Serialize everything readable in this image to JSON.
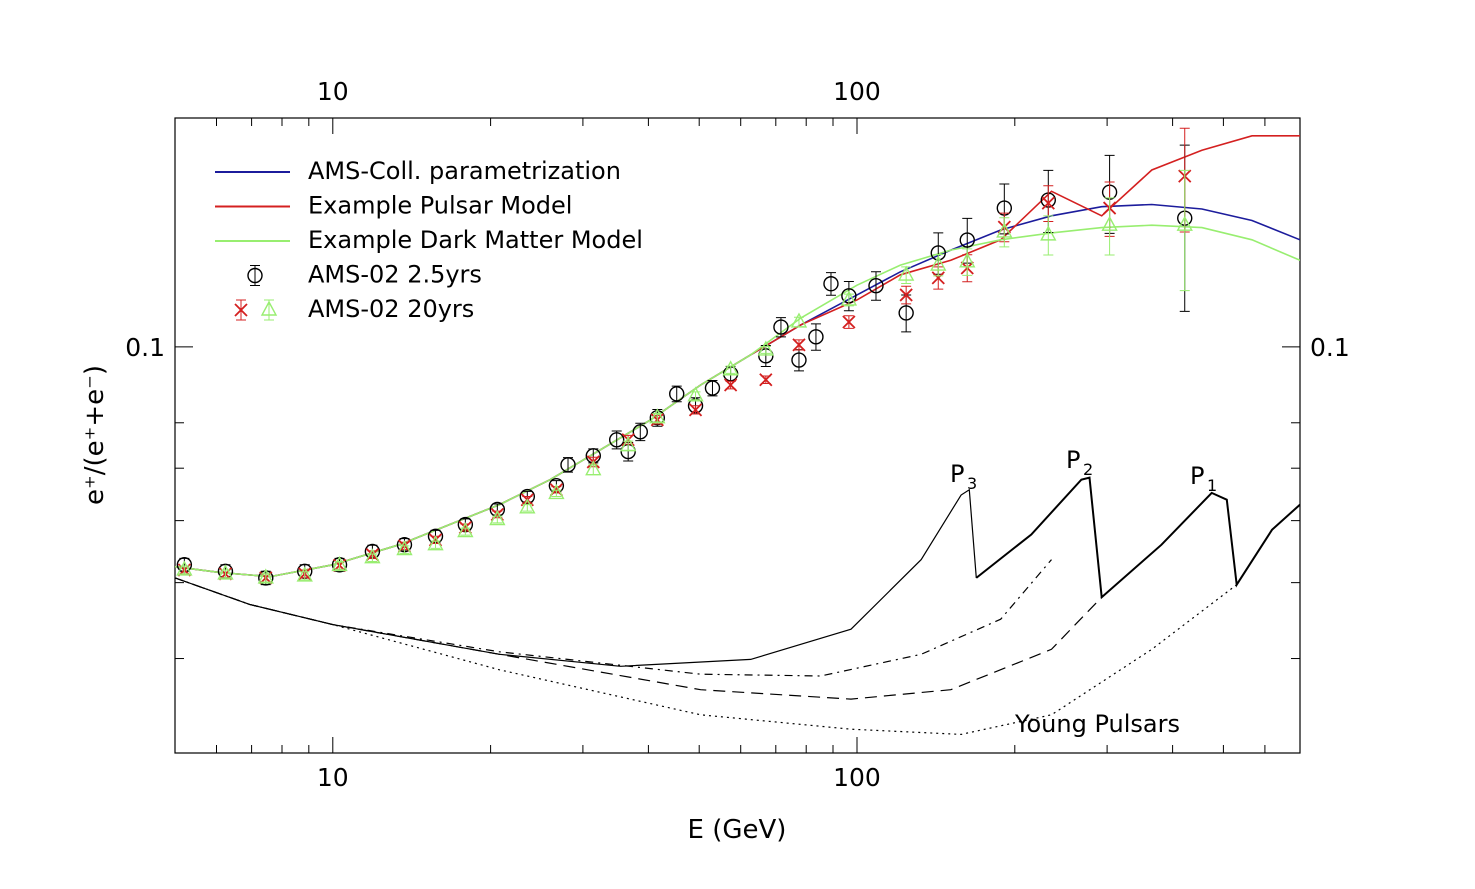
{
  "chart_data": {
    "type": "line",
    "xlabel": "E (GeV)",
    "ylabel": "e⁺/(e⁺+e⁻)",
    "xlog": true,
    "ylog": true,
    "xlim": [
      5,
      700
    ],
    "ylim": [
      0.0303,
      0.196
    ],
    "xticks": [
      10,
      100
    ],
    "xminor": [
      6,
      7,
      8,
      9,
      20,
      30,
      40,
      50,
      60,
      70,
      80,
      90,
      200,
      300,
      400,
      500,
      600
    ],
    "yticks": [
      0.1
    ],
    "yminor": [
      0.04,
      0.05,
      0.06,
      0.07,
      0.08
    ],
    "legend": "upper left",
    "series": [
      {
        "name": "AMS-Coll. parametrization",
        "kind": "line",
        "color": "#1c1c9c",
        "x": [
          5,
          6.1,
          7.6,
          10,
          13.4,
          16.7,
          20.8,
          26,
          32.4,
          40.4,
          50.3,
          62.7,
          78.2,
          100,
          121,
          151,
          188,
          235,
          293,
          365,
          455,
          567,
          700
        ],
        "values": [
          0.0524,
          0.0515,
          0.0509,
          0.0527,
          0.0559,
          0.0593,
          0.0629,
          0.0677,
          0.0739,
          0.0807,
          0.0894,
          0.0977,
          0.1067,
          0.1165,
          0.1247,
          0.1329,
          0.141,
          0.147,
          0.151,
          0.152,
          0.15,
          0.145,
          0.137
        ]
      },
      {
        "name": "Example Pulsar Model",
        "kind": "line",
        "color": "#d42020",
        "x": [
          5,
          6.1,
          7.6,
          10,
          13.4,
          16.7,
          20.8,
          26,
          32.4,
          40.4,
          50.3,
          62.7,
          78.2,
          100,
          121,
          151,
          188,
          235,
          293,
          365,
          455,
          567,
          700
        ],
        "values": [
          0.0524,
          0.0515,
          0.0509,
          0.0527,
          0.0559,
          0.0593,
          0.0629,
          0.0677,
          0.0739,
          0.0807,
          0.0894,
          0.0977,
          0.1067,
          0.1148,
          0.1236,
          0.129,
          0.137,
          0.158,
          0.147,
          0.1682,
          0.1783,
          0.186,
          0.186
        ]
      },
      {
        "name": "Example Dark Matter Model",
        "kind": "line",
        "color": "#98ee70",
        "x": [
          5,
          6.1,
          7.6,
          10,
          13.4,
          16.7,
          20.8,
          26,
          32.4,
          40.4,
          50.3,
          62.7,
          78.2,
          100,
          121,
          151,
          188,
          235,
          293,
          365,
          455,
          567,
          700
        ],
        "values": [
          0.0524,
          0.0515,
          0.0509,
          0.0527,
          0.0559,
          0.0593,
          0.0629,
          0.0677,
          0.0739,
          0.0807,
          0.0894,
          0.0977,
          0.1089,
          0.1199,
          0.1272,
          0.1329,
          0.137,
          0.1398,
          0.142,
          0.143,
          0.142,
          0.137,
          0.129
        ]
      },
      {
        "name": "AMS-02 2.5yrs",
        "kind": "points",
        "markers": [
          {
            "symbol": "circle",
            "color": "#000000",
            "x": [
              5.21,
              6.24,
              7.45,
              8.84,
              10.3,
              11.9,
              13.7,
              15.7,
              17.9,
              20.6,
              23.5,
              26.7,
              28.1,
              31.4,
              34.8,
              36.6,
              38.6,
              41.6,
              45.3,
              49.2,
              53.0,
              57.4,
              67.0,
              71.6,
              77.5,
              83.5,
              89.2,
              96.5,
              108.7,
              124.1,
              142.9,
              162.3,
              191.0,
              231.7,
              303.3,
              421.9
            ],
            "values": [
              0.0527,
              0.0517,
              0.0507,
              0.0517,
              0.0527,
              0.0548,
              0.0559,
              0.0573,
              0.0593,
              0.062,
              0.0644,
              0.0665,
              0.0707,
              0.0726,
              0.0761,
              0.0735,
              0.0779,
              0.0812,
              0.0871,
              0.0841,
              0.0886,
              0.0924,
              0.0974,
              0.106,
              0.0962,
              0.103,
              0.1204,
              0.1162,
              0.1197,
              0.1105,
              0.1318,
              0.1369,
              0.1504,
              0.154,
              0.1576,
              0.146
            ],
            "errors": [
              0.001,
              0.001,
              0.001,
              0.001,
              0.001,
              0.001,
              0.001,
              0.001,
              0.001,
              0.001,
              0.001,
              0.001,
              0.0015,
              0.0015,
              0.002,
              0.002,
              0.002,
              0.002,
              0.002,
              0.002,
              0.002,
              0.002,
              0.003,
              0.003,
              0.003,
              0.004,
              0.004,
              0.005,
              0.005,
              0.006,
              0.008,
              0.009,
              0.011,
              0.014,
              0.018,
              0.035
            ]
          }
        ]
      },
      {
        "name": "AMS-02 20yrs",
        "kind": "points",
        "markers": [
          {
            "symbol": "x",
            "color": "#d42020",
            "x": [
              5.21,
              6.24,
              7.45,
              8.84,
              10.3,
              11.9,
              13.7,
              15.7,
              17.9,
              20.6,
              23.5,
              26.7,
              31.4,
              36.6,
              41.6,
              49.2,
              57.4,
              67.0,
              77.5,
              96.5,
              124.1,
              142.9,
              162.3,
              191.0,
              231.7,
              303.3,
              421.9
            ],
            "values": [
              0.0519,
              0.0513,
              0.0507,
              0.0513,
              0.0526,
              0.0543,
              0.0557,
              0.0567,
              0.0588,
              0.0611,
              0.0638,
              0.0657,
              0.0713,
              0.0761,
              0.0807,
              0.0831,
              0.0894,
              0.0908,
              0.1006,
              0.1076,
              0.1165,
              0.1225,
              0.1261,
              0.1422,
              0.1526,
              0.1504,
              0.1652
            ],
            "errors": [
              0.0006,
              0.0006,
              0.0006,
              0.0006,
              0.0006,
              0.0006,
              0.0006,
              0.0006,
              0.0006,
              0.0006,
              0.0006,
              0.0006,
              0.001,
              0.001,
              0.001,
              0.001,
              0.001,
              0.001,
              0.0015,
              0.002,
              0.003,
              0.004,
              0.005,
              0.006,
              0.008,
              0.012,
              0.025
            ]
          },
          {
            "symbol": "triangle",
            "color": "#98ee70",
            "x": [
              5.21,
              6.24,
              7.45,
              8.84,
              10.3,
              11.9,
              13.7,
              15.7,
              17.9,
              20.6,
              23.5,
              26.7,
              31.4,
              36.6,
              41.6,
              49.2,
              57.4,
              67.0,
              77.5,
              96.5,
              124.1,
              142.9,
              162.3,
              191.0,
              231.7,
              303.3,
              421.9
            ],
            "values": [
              0.0519,
              0.0513,
              0.0507,
              0.051,
              0.0526,
              0.0538,
              0.0551,
              0.0559,
              0.0581,
              0.0602,
              0.0623,
              0.065,
              0.0697,
              0.0748,
              0.0812,
              0.0866,
              0.0935,
              0.0991,
              0.1076,
              0.1148,
              0.1235,
              0.1272,
              0.1284,
              0.1402,
              0.139,
              0.143,
              0.143
            ],
            "errors": [
              0.0006,
              0.0006,
              0.0006,
              0.0006,
              0.0006,
              0.0006,
              0.0006,
              0.0006,
              0.0006,
              0.0006,
              0.0006,
              0.0006,
              0.001,
              0.001,
              0.001,
              0.001,
              0.001,
              0.001,
              0.0015,
              0.002,
              0.003,
              0.004,
              0.005,
              0.006,
              0.008,
              0.012,
              0.025
            ]
          }
        ]
      }
    ],
    "curves": [
      {
        "style": "solid",
        "color": "#000000",
        "x": [
          5,
          6.94,
          10,
          20.8,
          35.4,
          62.7,
          97.4,
          132.6,
          158,
          163.8,
          168.9
        ],
        "values": [
          0.0507,
          0.0469,
          0.0442,
          0.0405,
          0.0391,
          0.0399,
          0.0436,
          0.0535,
          0.0647,
          0.0657,
          0.0507
        ]
      },
      {
        "style": "envelope",
        "color": "#000000",
        "x": [
          168.9,
          215,
          268,
          277.7,
          293,
          381,
          475,
          507.6,
          530,
          619,
          700
        ],
        "values": [
          0.0507,
          0.0576,
          0.0677,
          0.0681,
          0.0479,
          0.0559,
          0.0651,
          0.0638,
          0.0497,
          0.0584,
          0.0629
        ]
      },
      {
        "style": "dashdot",
        "color": "#000000",
        "x": [
          5,
          6.94,
          10,
          20.8,
          50.3,
          85.3,
          132.6,
          188,
          235
        ],
        "values": [
          0.0507,
          0.0469,
          0.0442,
          0.0408,
          0.0382,
          0.038,
          0.0405,
          0.0449,
          0.0535
        ]
      },
      {
        "style": "dashed",
        "color": "#000000",
        "x": [
          5,
          6.94,
          10,
          20.8,
          50.3,
          97.4,
          151,
          235,
          293
        ],
        "values": [
          0.0507,
          0.0469,
          0.0442,
          0.0405,
          0.0365,
          0.0355,
          0.0365,
          0.0411,
          0.0479
        ]
      },
      {
        "style": "dotted",
        "color": "#000000",
        "x": [
          5,
          6.94,
          10,
          20.8,
          50.3,
          97.4,
          158,
          235,
          365,
          530
        ],
        "values": [
          0.0507,
          0.0469,
          0.0442,
          0.0387,
          0.0339,
          0.0325,
          0.032,
          0.0339,
          0.0411,
          0.0497
        ]
      }
    ],
    "annotations": [
      {
        "text": "P",
        "sub": "3"
      },
      {
        "text": "P",
        "sub": "2"
      },
      {
        "text": "P",
        "sub": "1"
      },
      {
        "text": "Young Pulsars"
      }
    ]
  }
}
